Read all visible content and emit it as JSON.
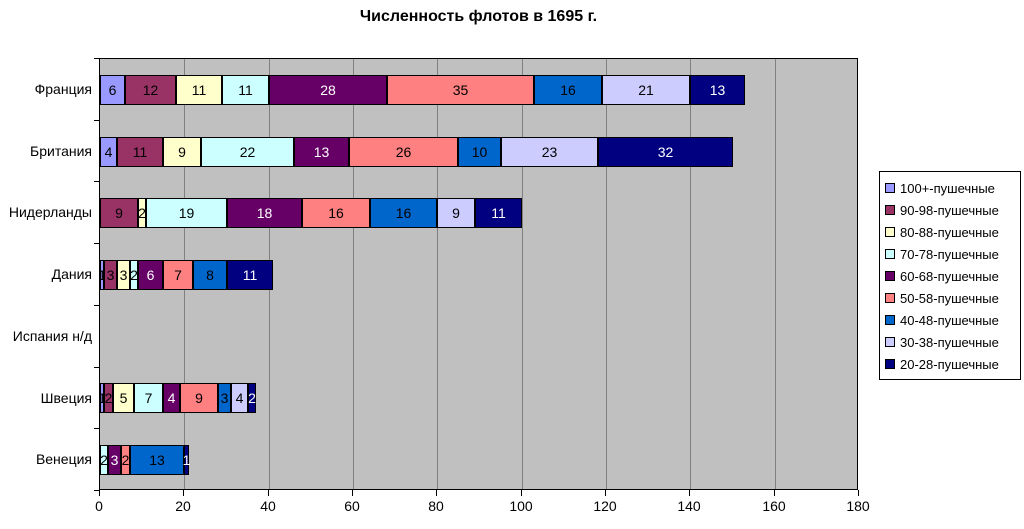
{
  "chart_data": {
    "type": "bar",
    "orientation": "horizontal",
    "stacked": true,
    "title": "Численность флотов в 1695 г.",
    "xlabel": "",
    "ylabel": "",
    "categories": [
      "Франция",
      "Британия",
      "Нидерланды",
      "Дания",
      "Испания н/д",
      "Швеция",
      "Венеция"
    ],
    "series": [
      {
        "name": "100+-пушечные",
        "color": "#9999FF",
        "label_color": "#000000",
        "values": [
          6,
          4,
          0,
          1,
          0,
          1,
          0
        ]
      },
      {
        "name": "90-98-пушечные",
        "color": "#993366",
        "label_color": "#000000",
        "values": [
          12,
          11,
          9,
          3,
          0,
          2,
          0
        ]
      },
      {
        "name": "80-88-пушечные",
        "color": "#FFFFCC",
        "label_color": "#000000",
        "values": [
          11,
          9,
          2,
          3,
          0,
          5,
          0
        ]
      },
      {
        "name": "70-78-пушечные",
        "color": "#CCFFFF",
        "label_color": "#000000",
        "values": [
          11,
          22,
          19,
          2,
          0,
          7,
          2
        ]
      },
      {
        "name": "60-68-пушечные",
        "color": "#660066",
        "label_color": "#FFFFFF",
        "values": [
          28,
          13,
          18,
          6,
          0,
          4,
          3
        ]
      },
      {
        "name": "50-58-пушечные",
        "color": "#FF8080",
        "label_color": "#000000",
        "values": [
          35,
          26,
          16,
          7,
          0,
          9,
          2
        ]
      },
      {
        "name": "40-48-пушечные",
        "color": "#0066CC",
        "label_color": "#000000",
        "values": [
          16,
          10,
          16,
          8,
          0,
          3,
          13
        ]
      },
      {
        "name": "30-38-пушечные",
        "color": "#CCCCFF",
        "label_color": "#000000",
        "values": [
          21,
          23,
          9,
          0,
          0,
          4,
          0
        ]
      },
      {
        "name": "20-28-пушечные",
        "color": "#000080",
        "label_color": "#FFFFFF",
        "values": [
          13,
          32,
          11,
          11,
          0,
          2,
          1
        ]
      }
    ],
    "xlim": [
      0,
      180
    ],
    "x_ticks": [
      0,
      20,
      40,
      60,
      80,
      100,
      120,
      140,
      160,
      180
    ],
    "grid": true,
    "legend_position": "right",
    "plot_bg": "#C0C0C0",
    "gridline_color": "#808080",
    "bar_totals": [
      153,
      150,
      100,
      41,
      0,
      37,
      21
    ]
  }
}
